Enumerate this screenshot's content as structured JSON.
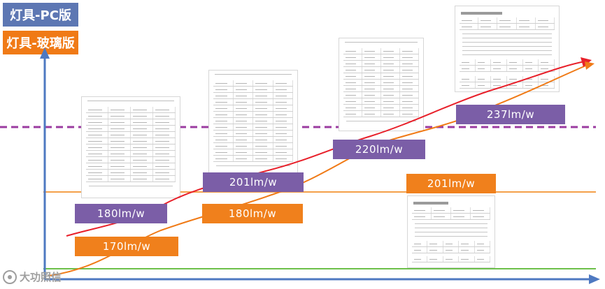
{
  "legend": {
    "pc": "灯具-PC版",
    "glass": "灯具-玻璃版"
  },
  "labels": {
    "pc": [
      "180lm/w",
      "201lm/w",
      "220lm/w",
      "237lm/w"
    ],
    "glass": [
      "170lm/w",
      "180lm/w",
      "201lm/w"
    ]
  },
  "logo_text": "大功照信",
  "colors": {
    "axis": "#4e79c1",
    "pc_curve": "#e8202a",
    "glass_curve": "#f07a16",
    "pc_label": "#7b5ea7",
    "glass_label": "#f0801c",
    "dashed_line": "#9b3ca0",
    "green_line": "#6cc04a",
    "orange_line": "#f4a04a"
  }
}
